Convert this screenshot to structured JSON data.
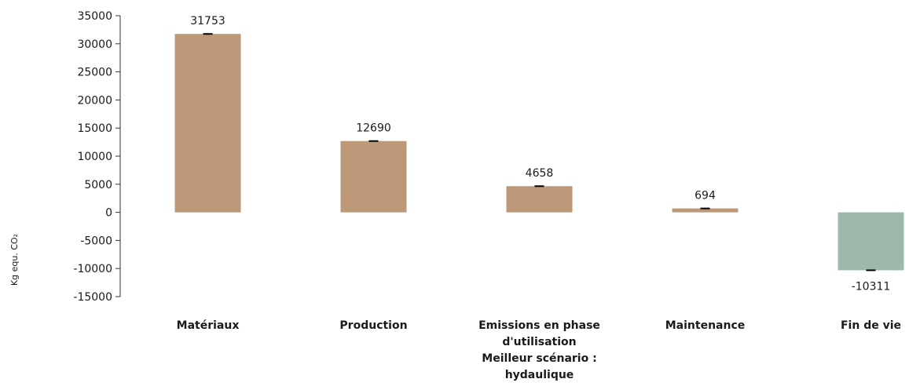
{
  "chart_data": {
    "type": "bar",
    "title": "",
    "xlabel": "",
    "ylabel": "Kg equ. CO₂",
    "ylim": [
      -15000,
      35000
    ],
    "ytick_step": 5000,
    "grid": false,
    "categories": [
      [
        "Matériaux"
      ],
      [
        "Production"
      ],
      [
        "Emissions en phase",
        "d'utilisation",
        "Meilleur scénario :",
        "hydaulique"
      ],
      [
        "Maintenance"
      ],
      [
        "Fin de vie"
      ]
    ],
    "values": [
      31753,
      12690,
      4658,
      694,
      -10311
    ],
    "data_labels": [
      "31753",
      "12690",
      "4658",
      "694",
      "-10311"
    ],
    "colors": [
      "#bc9878",
      "#bc9878",
      "#bc9878",
      "#bc9878",
      "#9db9a9"
    ],
    "error_bars": true
  }
}
